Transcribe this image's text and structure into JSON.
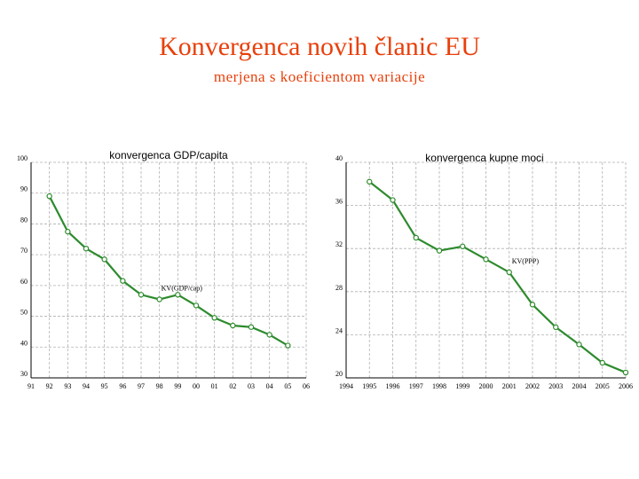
{
  "slide": {
    "title": "Konvergenca novih članic EU",
    "subtitle": "merjena s koeficientom variacije"
  },
  "chart_data": [
    {
      "type": "line",
      "title": "konvergenca GDP/capita",
      "categories": [
        "91",
        "92",
        "93",
        "94",
        "95",
        "96",
        "97",
        "98",
        "99",
        "00",
        "01",
        "02",
        "03",
        "04",
        "05",
        "06"
      ],
      "yticks": [
        "100",
        "90",
        "80",
        "70",
        "60",
        "50",
        "40",
        "30"
      ],
      "ylim": [
        30,
        100
      ],
      "grid": "dashed",
      "series": [
        {
          "name": "KV(GDP/cap)",
          "color": "#2e8b2e",
          "x": [
            "92",
            "93",
            "94",
            "95",
            "96",
            "97",
            "98",
            "99",
            "00",
            "01",
            "02",
            "03",
            "04",
            "05"
          ],
          "values": [
            89,
            77.5,
            72,
            68.5,
            61.5,
            57,
            55.5,
            57,
            53.5,
            49.5,
            47,
            46.5,
            44,
            40.5
          ]
        }
      ]
    },
    {
      "type": "line",
      "title": "konvergenca kupne moci",
      "categories": [
        "1994",
        "1995",
        "1996",
        "1997",
        "1998",
        "1999",
        "2000",
        "2001",
        "2002",
        "2003",
        "2004",
        "2005",
        "2006"
      ],
      "yticks": [
        "40",
        "36",
        "32",
        "28",
        "24",
        "20"
      ],
      "ylim": [
        20,
        40
      ],
      "grid": "dashed",
      "series": [
        {
          "name": "KV(PPP)",
          "color": "#2e8b2e",
          "x": [
            "1995",
            "1996",
            "1997",
            "1998",
            "1999",
            "2000",
            "2001",
            "2002",
            "2003",
            "2004",
            "2005",
            "2006"
          ],
          "values": [
            38.2,
            36.5,
            33,
            31.8,
            32.2,
            31,
            29.8,
            26.8,
            24.7,
            23.1,
            21.4,
            20.5
          ]
        }
      ]
    }
  ]
}
